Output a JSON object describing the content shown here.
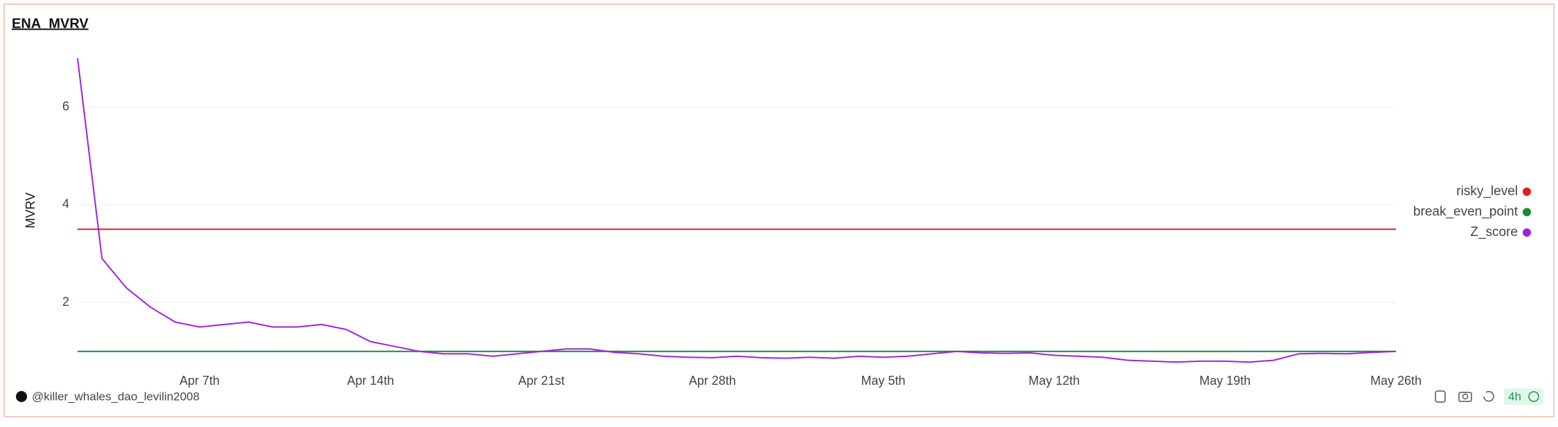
{
  "chart_data": {
    "type": "line",
    "title": "ENA_MVRV",
    "ylabel": "MVRV",
    "x": [
      null,
      null,
      null,
      null,
      null,
      "Apr 7th",
      null,
      null,
      null,
      null,
      null,
      null,
      "Apr 14th",
      null,
      null,
      null,
      null,
      null,
      null,
      "Apr 21st",
      null,
      null,
      null,
      null,
      null,
      null,
      "Apr 28th",
      null,
      null,
      null,
      null,
      null,
      null,
      "May 5th",
      null,
      null,
      null,
      null,
      null,
      null,
      "May 12th",
      null,
      null,
      null,
      null,
      null,
      null,
      "May 19th",
      null,
      null,
      null,
      null,
      null,
      null,
      "May 26th"
    ],
    "series": [
      {
        "name": "risky_level",
        "color": "#e0201c",
        "values": [
          3.5,
          3.5,
          3.5,
          3.5,
          3.5,
          3.5,
          3.5,
          3.5,
          3.5,
          3.5,
          3.5,
          3.5,
          3.5,
          3.5,
          3.5,
          3.5,
          3.5,
          3.5,
          3.5,
          3.5,
          3.5,
          3.5,
          3.5,
          3.5,
          3.5,
          3.5,
          3.5,
          3.5,
          3.5,
          3.5,
          3.5,
          3.5,
          3.5,
          3.5,
          3.5,
          3.5,
          3.5,
          3.5,
          3.5,
          3.5,
          3.5,
          3.5,
          3.5,
          3.5,
          3.5,
          3.5,
          3.5,
          3.5,
          3.5,
          3.5,
          3.5,
          3.5,
          3.5,
          3.5,
          3.5
        ]
      },
      {
        "name": "break_even_point",
        "color": "#1a8a2e",
        "values": [
          1,
          1,
          1,
          1,
          1,
          1,
          1,
          1,
          1,
          1,
          1,
          1,
          1,
          1,
          1,
          1,
          1,
          1,
          1,
          1,
          1,
          1,
          1,
          1,
          1,
          1,
          1,
          1,
          1,
          1,
          1,
          1,
          1,
          1,
          1,
          1,
          1,
          1,
          1,
          1,
          1,
          1,
          1,
          1,
          1,
          1,
          1,
          1,
          1,
          1,
          1,
          1,
          1,
          1,
          1
        ]
      },
      {
        "name": "Z_score",
        "color": "#a020e0",
        "values": [
          7.0,
          2.9,
          2.3,
          1.9,
          1.6,
          1.5,
          1.55,
          1.6,
          1.5,
          1.5,
          1.55,
          1.45,
          1.2,
          1.1,
          1.0,
          0.95,
          0.95,
          0.9,
          0.95,
          1.0,
          1.05,
          1.05,
          0.98,
          0.95,
          0.9,
          0.88,
          0.87,
          0.9,
          0.87,
          0.86,
          0.88,
          0.86,
          0.9,
          0.88,
          0.9,
          0.95,
          1.0,
          0.97,
          0.96,
          0.97,
          0.92,
          0.9,
          0.88,
          0.82,
          0.8,
          0.78,
          0.8,
          0.8,
          0.78,
          0.82,
          0.95,
          0.96,
          0.95,
          0.98,
          1.0
        ]
      }
    ],
    "ylim": [
      0.6,
      7.2
    ],
    "yticks": [
      2,
      4,
      6
    ],
    "grid": true,
    "legend": "right"
  },
  "footer": {
    "user": "@killer_whales_dao_levilin2008",
    "interval": "4h"
  }
}
